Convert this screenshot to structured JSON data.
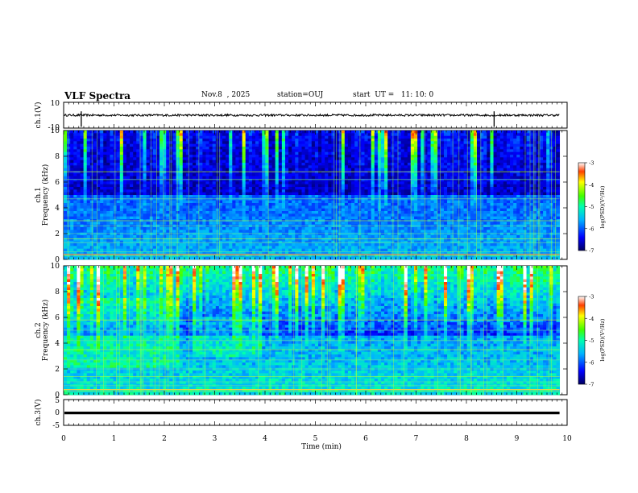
{
  "header": {
    "title": "VLF Spectra",
    "date": "Nov.8  , 2025",
    "station": "station=OUJ",
    "start": "start  UT =   11: 10: 0"
  },
  "colors": {
    "trace": "#000000",
    "axis": "#000000"
  },
  "chart_data": [
    {
      "type": "line",
      "name": "ch1-waveform",
      "ylabel": "ch.1(V)",
      "ylim": [
        -10,
        10
      ],
      "yticks": [
        "10",
        "-10"
      ],
      "level": 0,
      "spikes_min": [
        0.35,
        8.55
      ]
    },
    {
      "type": "heatmap",
      "name": "ch1-spectrogram",
      "ylabel": "ch.1\nFrequency (kHz)",
      "ylim": [
        0,
        10
      ],
      "yticks": [
        "0",
        "2",
        "4",
        "6",
        "8",
        "10"
      ],
      "colorbar": {
        "label": "log(PSD)(V²/Hz)",
        "range": [
          -7,
          -3
        ],
        "ticks": [
          "-3",
          "-4",
          "-5",
          "-6",
          "-7"
        ]
      }
    },
    {
      "type": "heatmap",
      "name": "ch2-spectrogram",
      "ylabel": "ch.2\nFrequency (kHz)",
      "ylim": [
        0,
        10
      ],
      "yticks": [
        "0",
        "2",
        "4",
        "6",
        "8",
        "10"
      ],
      "colorbar": {
        "label": "log(PSD)(V²/Hz)",
        "range": [
          -7,
          -3
        ],
        "ticks": [
          "-3",
          "-4",
          "-5",
          "-6",
          "-7"
        ]
      }
    },
    {
      "type": "line",
      "name": "ch3-waveform",
      "ylabel": "ch.3(V)",
      "ylim": [
        -5,
        5
      ],
      "yticks": [
        "5",
        "0",
        "-5"
      ],
      "level": -0.2
    }
  ],
  "xaxis": {
    "label": "Time  (min)",
    "range": [
      0,
      10
    ],
    "ticks": [
      "0",
      "1",
      "2",
      "3",
      "4",
      "5",
      "6",
      "7",
      "8",
      "9",
      "10"
    ],
    "data_end": 9.85
  },
  "labels": {
    "ch1_a": "ch.1",
    "ch1_b": "Frequency  (kHz)",
    "ch2_a": "ch.2",
    "ch2_b": "Frequency  (kHz)",
    "cb_label": "log(PSD)(V²/Hz)"
  }
}
